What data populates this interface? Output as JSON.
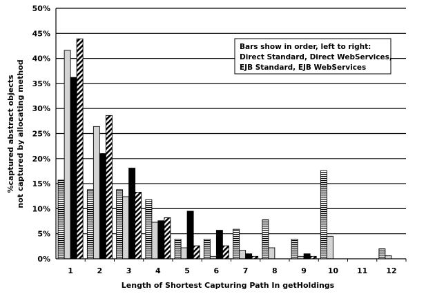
{
  "chart_data": {
    "type": "bar",
    "title": "",
    "xlabel": "Length of Shortest Capturing Path In getHoldings",
    "ylabel_lines": [
      "%captured abstract objects",
      "not captured by allocating method"
    ],
    "ylim": [
      0,
      50
    ],
    "y_ticks": [
      "0%",
      "5%",
      "10%",
      "15%",
      "20%",
      "25%",
      "30%",
      "35%",
      "40%",
      "45%",
      "50%"
    ],
    "grid": true,
    "categories": [
      "1",
      "2",
      "3",
      "4",
      "5",
      "6",
      "7",
      "8",
      "9",
      "10",
      "11",
      "12"
    ],
    "series": [
      {
        "values": [
          15.7,
          13.8,
          13.8,
          11.8,
          3.9,
          3.9,
          5.9,
          7.8,
          3.9,
          17.6,
          0,
          2.0
        ]
      },
      {
        "values": [
          41.6,
          26.4,
          12.4,
          7.3,
          2.2,
          0.5,
          1.7,
          2.2,
          0.5,
          4.5,
          0,
          0.6
        ]
      },
      {
        "values": [
          36.2,
          21.0,
          18.1,
          7.6,
          9.5,
          5.7,
          1.0,
          0,
          1.0,
          0,
          0,
          0
        ]
      },
      {
        "values": [
          43.9,
          28.6,
          13.3,
          8.2,
          2.6,
          2.6,
          0.5,
          0,
          0.5,
          0,
          0,
          0
        ]
      }
    ],
    "annotation": {
      "lines": [
        "Bars show in order, left to right:",
        "Direct Standard, Direct WebServices,",
        "EJB Standard, EJB WebServices"
      ],
      "placement": "top-right"
    }
  }
}
